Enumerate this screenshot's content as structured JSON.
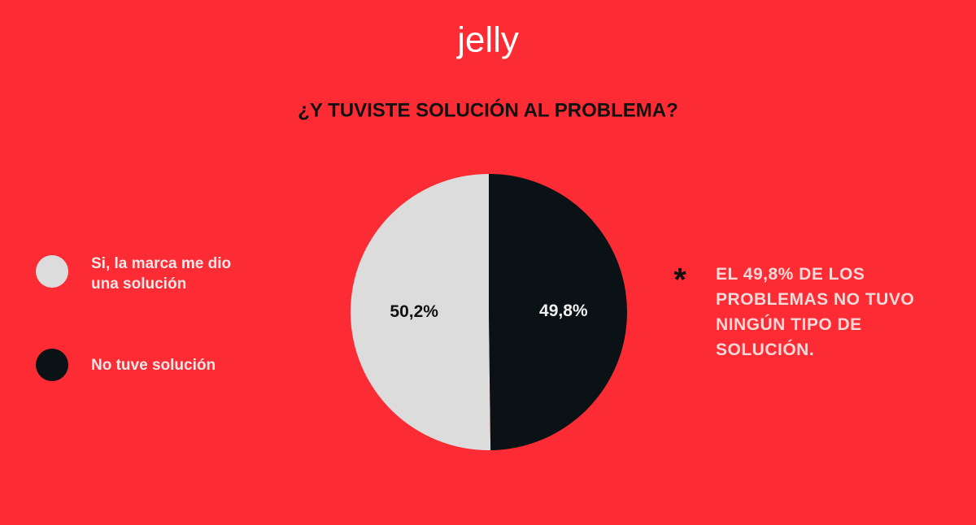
{
  "chart_data": {
    "type": "pie",
    "logo": "jelly",
    "title": "¿Y TUVISTE SOLUCIÓN AL PROBLEMA?",
    "categories": [
      "Si, la marca me dio una solución",
      "No tuve solución"
    ],
    "values": [
      50.2,
      49.8
    ],
    "value_labels": [
      "50,2%",
      "49,8%"
    ],
    "colors": [
      "#dcdcdc",
      "#0b1215"
    ],
    "value_label_colors": [
      "#111111",
      "#f0f0f0"
    ],
    "annotation_mark": "*",
    "annotation": "EL 49,8% DE LOS PROBLEMAS NO TUVO NINGÚN TIPO DE SOLUCIÓN."
  }
}
